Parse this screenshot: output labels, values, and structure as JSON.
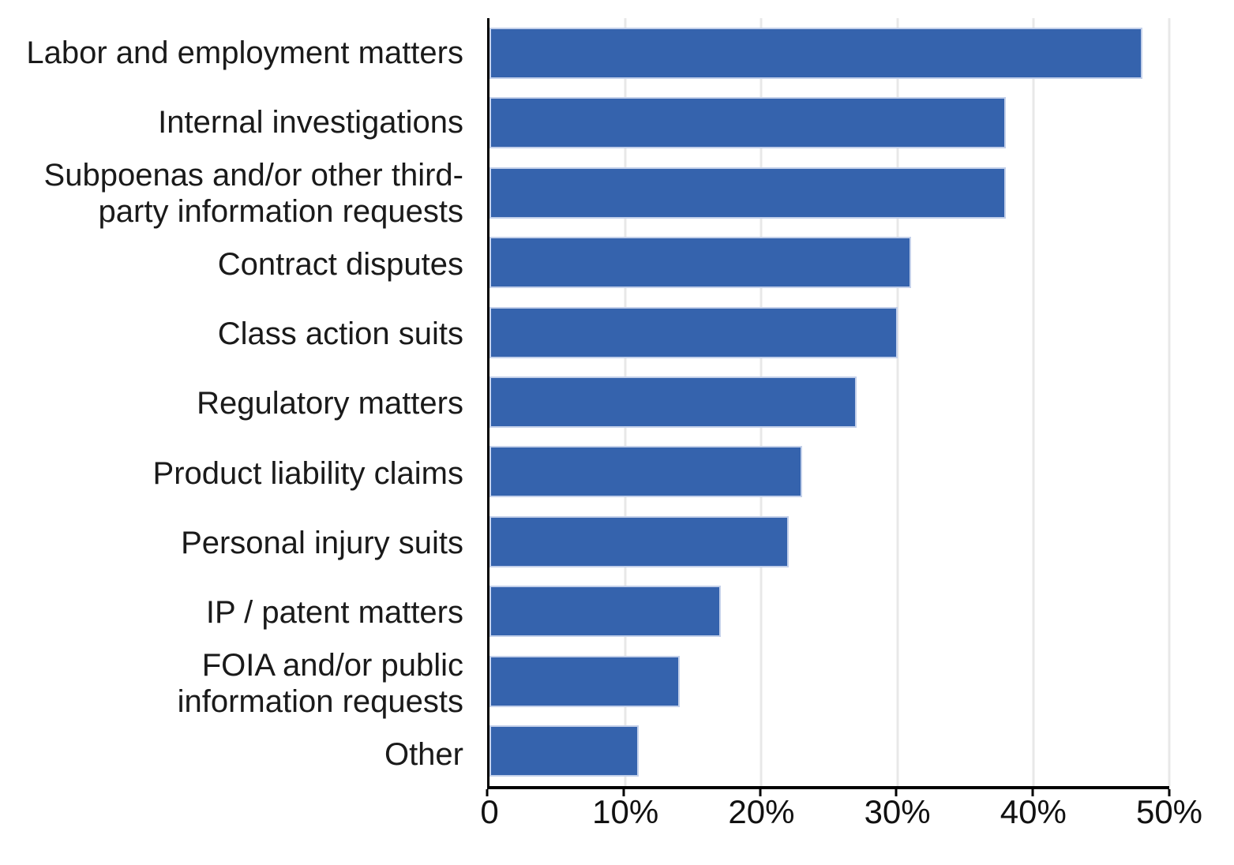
{
  "chart_data": {
    "type": "bar",
    "orientation": "horizontal",
    "title": "",
    "xlabel": "",
    "ylabel": "",
    "categories": [
      "Labor and employment matters",
      "Internal investigations",
      "Subpoenas and/or other third-\nparty information requests",
      "Contract disputes",
      "Class action suits",
      "Regulatory matters",
      "Product liability claims",
      "Personal injury suits",
      "IP / patent matters",
      "FOIA and/or public\ninformation requests",
      "Other"
    ],
    "values": [
      48,
      38,
      38,
      31,
      30,
      27,
      23,
      22,
      17,
      14,
      11
    ],
    "unit": "%",
    "xlim": [
      0,
      50
    ],
    "x_ticks": [
      {
        "value": 0,
        "label": "0"
      },
      {
        "value": 10,
        "label": "10%"
      },
      {
        "value": 20,
        "label": "20%"
      },
      {
        "value": 30,
        "label": "30%"
      },
      {
        "value": 40,
        "label": "40%"
      },
      {
        "value": 50,
        "label": "50%"
      }
    ],
    "grid": "vertical, behind bars",
    "legend_position": "none",
    "colors": {
      "bar_fill": "#3563ad",
      "bar_stroke": "#c3d0ea",
      "gridline": "#e8e8e8",
      "axis": "#000000",
      "text": "#1a1a1a",
      "background": "#ffffff"
    }
  }
}
